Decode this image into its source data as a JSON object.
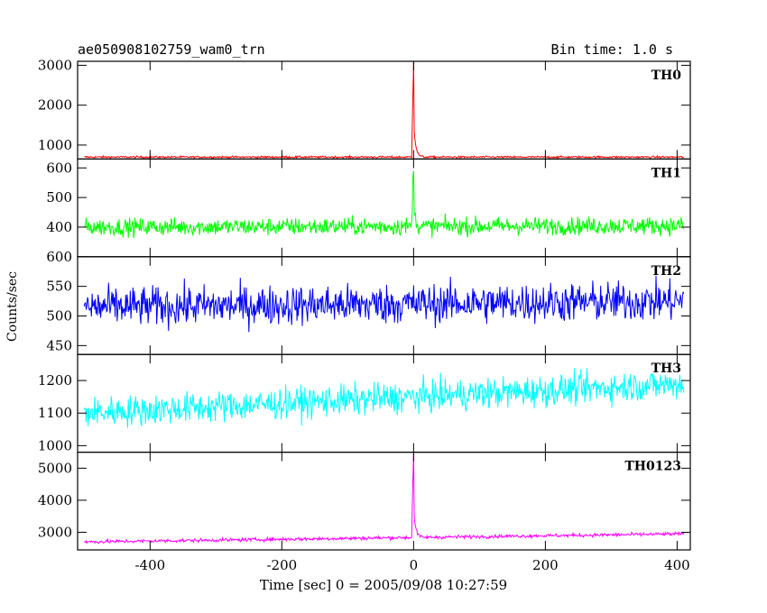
{
  "header": {
    "title": "ae050908102759_wam0_trn",
    "bin_time": "Bin time: 1.0 s"
  },
  "chart_data": {
    "type": "line",
    "title": "ae050908102759_wam0_trn",
    "subtitle": "Bin time: 1.0 s",
    "xlabel": "Time [sec] 0 = 2005/09/08 10:27:59",
    "ylabel": "Counts/sec",
    "xlim": [
      -510,
      420
    ],
    "x_ticks": [
      -400,
      -200,
      0,
      200,
      400
    ],
    "x_range_data": [
      -500,
      410
    ],
    "grid": false,
    "panels": [
      {
        "name": "TH0",
        "color": "#ff0000",
        "ylim": [
          650,
          3100
        ],
        "y_ticks": [
          1000,
          2000,
          3000
        ],
        "baseline": 700,
        "noise": 20,
        "trend_end": 700,
        "peak": {
          "x": 0,
          "value": 3100,
          "tail": 900
        }
      },
      {
        "name": "TH1",
        "color": "#00ff00",
        "ylim": [
          300,
          630
        ],
        "y_ticks": [
          400,
          500,
          600
        ],
        "baseline": 400,
        "noise": 25,
        "trend_end": 405,
        "peak": {
          "x": 0,
          "value": 620,
          "tail": 60
        }
      },
      {
        "name": "TH2",
        "color": "#0000ff",
        "ylim": [
          435,
          600
        ],
        "y_ticks": [
          450,
          500,
          550,
          600
        ],
        "baseline": 515,
        "noise": 28,
        "trend_end": 525,
        "peak": null
      },
      {
        "name": "TH3",
        "color": "#00ffff",
        "ylim": [
          980,
          1280
        ],
        "y_ticks": [
          1000,
          1100,
          1200
        ],
        "baseline": 1100,
        "noise": 40,
        "trend_end": 1190,
        "peak": null
      },
      {
        "name": "TH0123",
        "color": "#ff00ff",
        "ylim": [
          2450,
          5500
        ],
        "y_ticks": [
          3000,
          4000,
          5000
        ],
        "baseline": 2700,
        "noise": 45,
        "trend_end": 2950,
        "peak": {
          "x": 0,
          "value": 5500,
          "tail": 900
        }
      }
    ]
  }
}
